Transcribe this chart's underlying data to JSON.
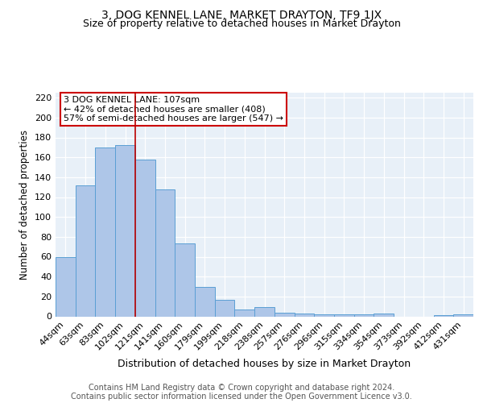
{
  "title": "3, DOG KENNEL LANE, MARKET DRAYTON, TF9 1JX",
  "subtitle": "Size of property relative to detached houses in Market Drayton",
  "xlabel": "Distribution of detached houses by size in Market Drayton",
  "ylabel": "Number of detached properties",
  "bar_labels": [
    "44sqm",
    "63sqm",
    "83sqm",
    "102sqm",
    "121sqm",
    "141sqm",
    "160sqm",
    "179sqm",
    "199sqm",
    "218sqm",
    "238sqm",
    "257sqm",
    "276sqm",
    "296sqm",
    "315sqm",
    "334sqm",
    "354sqm",
    "373sqm",
    "392sqm",
    "412sqm",
    "431sqm"
  ],
  "bar_values": [
    60,
    132,
    170,
    172,
    158,
    128,
    73,
    30,
    17,
    7,
    9,
    4,
    3,
    2,
    2,
    2,
    3,
    0,
    0,
    1,
    2
  ],
  "bar_color": "#aec6e8",
  "bar_edge_color": "#5a9fd4",
  "background_color": "#e8f0f8",
  "grid_color": "#ffffff",
  "vline_x_index": 3.5,
  "vline_color": "#bb0000",
  "annotation_text": "3 DOG KENNEL LANE: 107sqm\n← 42% of detached houses are smaller (408)\n57% of semi-detached houses are larger (547) →",
  "annotation_box_color": "#ffffff",
  "annotation_box_edge": "#cc0000",
  "ylim": [
    0,
    225
  ],
  "yticks": [
    0,
    20,
    40,
    60,
    80,
    100,
    120,
    140,
    160,
    180,
    200,
    220
  ],
  "footer_line1": "Contains HM Land Registry data © Crown copyright and database right 2024.",
  "footer_line2": "Contains public sector information licensed under the Open Government Licence v3.0.",
  "title_fontsize": 10,
  "subtitle_fontsize": 9,
  "xlabel_fontsize": 9,
  "ylabel_fontsize": 8.5,
  "tick_fontsize": 8,
  "annotation_fontsize": 8,
  "footer_fontsize": 7
}
